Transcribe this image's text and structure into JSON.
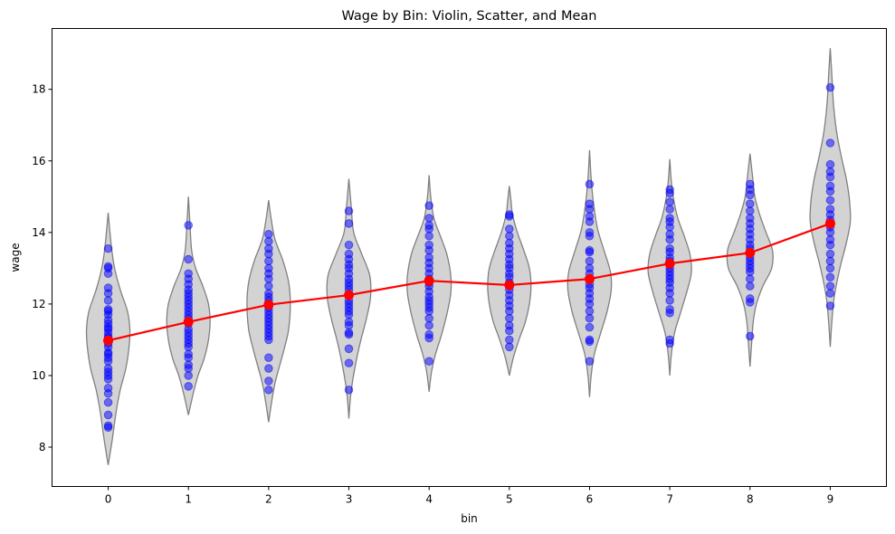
{
  "chart_data": {
    "type": "violin",
    "title": "Wage by Bin: Violin, Scatter, and Mean",
    "xlabel": "bin",
    "ylabel": "wage",
    "xlim": [
      -0.7,
      9.7
    ],
    "ylim": [
      6.9,
      19.7
    ],
    "xticks": [
      "0",
      "1",
      "2",
      "3",
      "4",
      "5",
      "6",
      "7",
      "8",
      "9"
    ],
    "yticks": [
      8,
      10,
      12,
      14,
      16,
      18
    ],
    "grid": false,
    "colors": {
      "violin_fill": "#d3d3d3",
      "violin_edge": "#808080",
      "points": "#0000ff",
      "mean_line": "#ff0000"
    },
    "violins": [
      {
        "bin": 0,
        "min": 7.5,
        "max": 14.55,
        "shape": [
          [
            7.5,
            0.0
          ],
          [
            8.2,
            0.05
          ],
          [
            9.0,
            0.1
          ],
          [
            9.6,
            0.15
          ],
          [
            10.2,
            0.22
          ],
          [
            10.8,
            0.26
          ],
          [
            11.3,
            0.27
          ],
          [
            11.8,
            0.24
          ],
          [
            12.4,
            0.15
          ],
          [
            13.0,
            0.08
          ],
          [
            13.6,
            0.04
          ],
          [
            14.55,
            0.0
          ]
        ]
      },
      {
        "bin": 1,
        "min": 8.9,
        "max": 15.0,
        "shape": [
          [
            8.9,
            0.0
          ],
          [
            9.5,
            0.06
          ],
          [
            10.0,
            0.12
          ],
          [
            10.5,
            0.2
          ],
          [
            11.0,
            0.25
          ],
          [
            11.5,
            0.27
          ],
          [
            12.0,
            0.25
          ],
          [
            12.5,
            0.18
          ],
          [
            13.0,
            0.09
          ],
          [
            13.5,
            0.04
          ],
          [
            14.2,
            0.02
          ],
          [
            15.0,
            0.0
          ]
        ]
      },
      {
        "bin": 2,
        "min": 8.7,
        "max": 14.9,
        "shape": [
          [
            8.7,
            0.0
          ],
          [
            9.3,
            0.04
          ],
          [
            9.8,
            0.08
          ],
          [
            10.3,
            0.14
          ],
          [
            10.8,
            0.2
          ],
          [
            11.3,
            0.25
          ],
          [
            12.0,
            0.27
          ],
          [
            12.6,
            0.25
          ],
          [
            13.2,
            0.18
          ],
          [
            13.8,
            0.08
          ],
          [
            14.4,
            0.03
          ],
          [
            14.9,
            0.0
          ]
        ]
      },
      {
        "bin": 3,
        "min": 8.8,
        "max": 15.5,
        "shape": [
          [
            8.8,
            0.0
          ],
          [
            9.4,
            0.02
          ],
          [
            9.9,
            0.05
          ],
          [
            10.5,
            0.1
          ],
          [
            11.0,
            0.15
          ],
          [
            11.6,
            0.22
          ],
          [
            12.2,
            0.27
          ],
          [
            12.8,
            0.26
          ],
          [
            13.4,
            0.16
          ],
          [
            14.0,
            0.06
          ],
          [
            14.7,
            0.03
          ],
          [
            15.5,
            0.0
          ]
        ]
      },
      {
        "bin": 4,
        "min": 9.55,
        "max": 15.6,
        "shape": [
          [
            9.55,
            0.0
          ],
          [
            10.1,
            0.03
          ],
          [
            10.6,
            0.08
          ],
          [
            11.1,
            0.15
          ],
          [
            11.7,
            0.22
          ],
          [
            12.3,
            0.27
          ],
          [
            12.8,
            0.27
          ],
          [
            13.4,
            0.22
          ],
          [
            13.9,
            0.14
          ],
          [
            14.4,
            0.06
          ],
          [
            15.0,
            0.02
          ],
          [
            15.6,
            0.0
          ]
        ]
      },
      {
        "bin": 5,
        "min": 10.0,
        "max": 15.3,
        "shape": [
          [
            10.0,
            0.0
          ],
          [
            10.5,
            0.05
          ],
          [
            11.0,
            0.12
          ],
          [
            11.5,
            0.2
          ],
          [
            12.0,
            0.25
          ],
          [
            12.5,
            0.27
          ],
          [
            13.0,
            0.25
          ],
          [
            13.5,
            0.18
          ],
          [
            14.0,
            0.1
          ],
          [
            14.5,
            0.04
          ],
          [
            14.9,
            0.02
          ],
          [
            15.3,
            0.0
          ]
        ]
      },
      {
        "bin": 6,
        "min": 9.4,
        "max": 16.3,
        "shape": [
          [
            9.4,
            0.0
          ],
          [
            10.0,
            0.02
          ],
          [
            10.6,
            0.06
          ],
          [
            11.2,
            0.14
          ],
          [
            11.8,
            0.22
          ],
          [
            12.4,
            0.27
          ],
          [
            12.9,
            0.26
          ],
          [
            13.5,
            0.18
          ],
          [
            14.1,
            0.1
          ],
          [
            14.8,
            0.05
          ],
          [
            15.5,
            0.02
          ],
          [
            16.3,
            0.0
          ]
        ]
      },
      {
        "bin": 7,
        "min": 10.0,
        "max": 16.05,
        "shape": [
          [
            10.0,
            0.0
          ],
          [
            10.6,
            0.02
          ],
          [
            11.2,
            0.06
          ],
          [
            11.8,
            0.14
          ],
          [
            12.4,
            0.22
          ],
          [
            12.9,
            0.27
          ],
          [
            13.4,
            0.25
          ],
          [
            13.9,
            0.18
          ],
          [
            14.4,
            0.1
          ],
          [
            14.9,
            0.05
          ],
          [
            15.4,
            0.02
          ],
          [
            16.05,
            0.0
          ]
        ]
      },
      {
        "bin": 8,
        "min": 10.25,
        "max": 16.2,
        "shape": [
          [
            10.25,
            0.0
          ],
          [
            10.9,
            0.02
          ],
          [
            11.5,
            0.04
          ],
          [
            12.0,
            0.08
          ],
          [
            12.5,
            0.16
          ],
          [
            13.0,
            0.27
          ],
          [
            13.5,
            0.28
          ],
          [
            14.0,
            0.2
          ],
          [
            14.5,
            0.12
          ],
          [
            15.0,
            0.06
          ],
          [
            15.6,
            0.03
          ],
          [
            16.2,
            0.0
          ]
        ]
      },
      {
        "bin": 9,
        "min": 10.8,
        "max": 19.15,
        "shape": [
          [
            10.8,
            0.0
          ],
          [
            11.5,
            0.02
          ],
          [
            12.2,
            0.05
          ],
          [
            13.0,
            0.12
          ],
          [
            13.7,
            0.2
          ],
          [
            14.3,
            0.25
          ],
          [
            14.9,
            0.24
          ],
          [
            15.5,
            0.2
          ],
          [
            16.1,
            0.14
          ],
          [
            16.8,
            0.08
          ],
          [
            17.6,
            0.04
          ],
          [
            18.4,
            0.02
          ],
          [
            19.15,
            0.0
          ]
        ]
      }
    ],
    "points": [
      {
        "bin": 0,
        "y": [
          8.55,
          8.6,
          8.9,
          9.25,
          9.5,
          9.65,
          9.9,
          10.0,
          10.1,
          10.2,
          10.4,
          10.5,
          10.6,
          10.65,
          10.8,
          10.9,
          11.0,
          11.05,
          11.1,
          11.2,
          11.3,
          11.35,
          11.45,
          11.55,
          11.7,
          11.8,
          11.85,
          12.1,
          12.3,
          12.45,
          12.85,
          13.0,
          13.05,
          13.55
        ]
      },
      {
        "bin": 1,
        "y": [
          9.7,
          10.0,
          10.2,
          10.3,
          10.5,
          10.6,
          10.8,
          10.9,
          11.0,
          11.1,
          11.2,
          11.3,
          11.45,
          11.5,
          11.6,
          11.7,
          11.8,
          11.9,
          12.0,
          12.1,
          12.2,
          12.3,
          12.4,
          12.55,
          12.7,
          12.85,
          13.25,
          14.2
        ]
      },
      {
        "bin": 2,
        "y": [
          9.6,
          9.85,
          10.2,
          10.5,
          11.0,
          11.1,
          11.2,
          11.3,
          11.4,
          11.5,
          11.6,
          11.7,
          11.8,
          11.9,
          12.0,
          12.1,
          12.2,
          12.3,
          12.5,
          12.7,
          12.85,
          13.0,
          13.2,
          13.4,
          13.55,
          13.75,
          13.95
        ]
      },
      {
        "bin": 3,
        "y": [
          9.6,
          10.35,
          10.75,
          11.15,
          11.2,
          11.4,
          11.5,
          11.7,
          11.8,
          11.9,
          12.0,
          12.1,
          12.25,
          12.4,
          12.5,
          12.6,
          12.7,
          12.85,
          13.0,
          13.1,
          13.25,
          13.4,
          13.65,
          14.25,
          14.6
        ]
      },
      {
        "bin": 4,
        "y": [
          10.4,
          11.05,
          11.15,
          11.4,
          11.6,
          11.8,
          11.9,
          12.0,
          12.1,
          12.2,
          12.35,
          12.5,
          12.6,
          12.7,
          12.85,
          13.0,
          13.15,
          13.3,
          13.5,
          13.65,
          13.9,
          14.1,
          14.2,
          14.4,
          14.75
        ]
      },
      {
        "bin": 5,
        "y": [
          10.8,
          11.0,
          11.25,
          11.4,
          11.6,
          11.8,
          11.95,
          12.1,
          12.25,
          12.4,
          12.5,
          12.6,
          12.75,
          12.85,
          13.0,
          13.1,
          13.25,
          13.4,
          13.55,
          13.7,
          13.9,
          14.1,
          14.45,
          14.5
        ]
      },
      {
        "bin": 6,
        "y": [
          10.4,
          10.95,
          11.0,
          11.35,
          11.6,
          11.8,
          12.0,
          12.15,
          12.3,
          12.45,
          12.55,
          12.7,
          12.85,
          13.0,
          13.2,
          13.45,
          13.5,
          13.9,
          14.0,
          14.3,
          14.45,
          14.65,
          14.8,
          15.35
        ]
      },
      {
        "bin": 7,
        "y": [
          10.9,
          11.0,
          11.75,
          11.85,
          12.1,
          12.3,
          12.45,
          12.6,
          12.7,
          12.8,
          12.9,
          13.0,
          13.1,
          13.2,
          13.3,
          13.45,
          13.55,
          13.8,
          13.95,
          14.15,
          14.3,
          14.4,
          14.65,
          14.85,
          15.1,
          15.2
        ]
      },
      {
        "bin": 8,
        "y": [
          11.1,
          12.05,
          12.15,
          12.5,
          12.7,
          12.9,
          13.0,
          13.1,
          13.2,
          13.3,
          13.45,
          13.55,
          13.65,
          13.8,
          13.95,
          14.1,
          14.25,
          14.4,
          14.6,
          14.8,
          15.05,
          15.2,
          15.35
        ]
      },
      {
        "bin": 9,
        "y": [
          11.95,
          12.3,
          12.5,
          12.75,
          13.0,
          13.2,
          13.4,
          13.65,
          13.8,
          14.0,
          14.15,
          14.35,
          14.5,
          14.65,
          14.9,
          15.15,
          15.3,
          15.55,
          15.7,
          15.9,
          16.5,
          18.05
        ]
      }
    ],
    "mean": {
      "x": [
        0,
        1,
        2,
        3,
        4,
        5,
        6,
        7,
        8,
        9
      ],
      "y": [
        10.98,
        11.5,
        11.98,
        12.25,
        12.65,
        12.53,
        12.7,
        13.13,
        13.43,
        14.25
      ]
    }
  }
}
